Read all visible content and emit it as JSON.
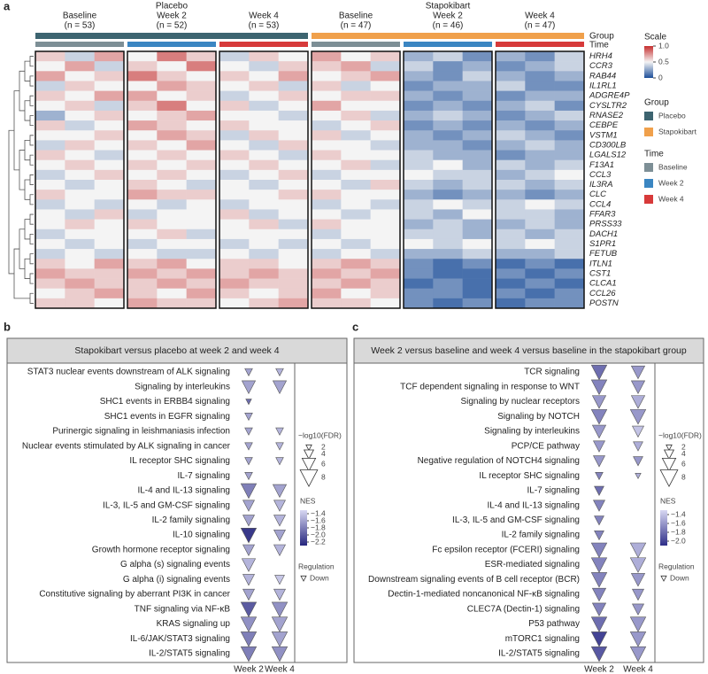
{
  "panel_a": {
    "label": "a",
    "group_names": [
      "Placebo",
      "Stapokibart"
    ],
    "time_labels": [
      "Baseline",
      "Week 2",
      "Week 4",
      "Baseline",
      "Week 2",
      "Week 4"
    ],
    "n_labels": [
      "(n = 53)",
      "(n = 52)",
      "(n = 53)",
      "(n = 47)",
      "(n = 46)",
      "(n = 47)"
    ],
    "group_bar_label": "Group",
    "time_bar_label": "Time",
    "genes": [
      "HRH4",
      "CCR3",
      "RAB44",
      "IL1RL1",
      "ADGRE4P",
      "CYSLTR2",
      "RNASE2",
      "CEBPE",
      "VSTM1",
      "CD300LB",
      "LGALS12",
      "F13A1",
      "CCL3",
      "IL3RA",
      "CLC",
      "CCL4",
      "FFAR3",
      "PRSS33",
      "DACH1",
      "S1PR1",
      "FETUB",
      "ITLN1",
      "CST1",
      "CLCA1",
      "CCL26",
      "POSTN"
    ],
    "values": [
      [
        0.6,
        0.4,
        0.7,
        0.5,
        0.8,
        0.6,
        0.4,
        0.6,
        0.5,
        0.7,
        0.5,
        0.6,
        0.3,
        0.4,
        0.2,
        0.3,
        0.2,
        0.4
      ],
      [
        0.5,
        0.7,
        0.4,
        0.6,
        0.5,
        0.8,
        0.5,
        0.4,
        0.6,
        0.6,
        0.7,
        0.4,
        0.4,
        0.2,
        0.3,
        0.2,
        0.3,
        0.4
      ],
      [
        0.7,
        0.5,
        0.6,
        0.8,
        0.6,
        0.5,
        0.6,
        0.5,
        0.7,
        0.5,
        0.6,
        0.7,
        0.3,
        0.2,
        0.4,
        0.3,
        0.2,
        0.3
      ],
      [
        0.4,
        0.6,
        0.5,
        0.5,
        0.7,
        0.6,
        0.5,
        0.6,
        0.4,
        0.6,
        0.4,
        0.5,
        0.2,
        0.3,
        0.3,
        0.4,
        0.2,
        0.2
      ],
      [
        0.6,
        0.5,
        0.7,
        0.7,
        0.5,
        0.6,
        0.4,
        0.5,
        0.6,
        0.5,
        0.6,
        0.6,
        0.3,
        0.2,
        0.3,
        0.2,
        0.3,
        0.3
      ],
      [
        0.5,
        0.6,
        0.4,
        0.6,
        0.8,
        0.5,
        0.6,
        0.4,
        0.5,
        0.7,
        0.5,
        0.5,
        0.2,
        0.3,
        0.2,
        0.3,
        0.4,
        0.2
      ],
      [
        0.3,
        0.5,
        0.6,
        0.5,
        0.6,
        0.7,
        0.5,
        0.5,
        0.4,
        0.5,
        0.6,
        0.4,
        0.3,
        0.4,
        0.3,
        0.2,
        0.3,
        0.4
      ],
      [
        0.6,
        0.4,
        0.5,
        0.7,
        0.6,
        0.5,
        0.6,
        0.5,
        0.5,
        0.4,
        0.5,
        0.6,
        0.2,
        0.3,
        0.2,
        0.3,
        0.2,
        0.3
      ],
      [
        0.5,
        0.5,
        0.6,
        0.5,
        0.7,
        0.6,
        0.4,
        0.6,
        0.5,
        0.6,
        0.4,
        0.5,
        0.3,
        0.2,
        0.3,
        0.4,
        0.3,
        0.2
      ],
      [
        0.4,
        0.6,
        0.5,
        0.6,
        0.5,
        0.7,
        0.5,
        0.4,
        0.6,
        0.5,
        0.5,
        0.4,
        0.3,
        0.3,
        0.2,
        0.3,
        0.4,
        0.3
      ],
      [
        0.6,
        0.5,
        0.4,
        0.5,
        0.6,
        0.5,
        0.6,
        0.5,
        0.4,
        0.6,
        0.5,
        0.5,
        0.4,
        0.3,
        0.3,
        0.2,
        0.3,
        0.3
      ],
      [
        0.5,
        0.6,
        0.5,
        0.6,
        0.5,
        0.6,
        0.5,
        0.6,
        0.5,
        0.5,
        0.6,
        0.4,
        0.4,
        0.5,
        0.3,
        0.4,
        0.3,
        0.4
      ],
      [
        0.4,
        0.5,
        0.6,
        0.5,
        0.6,
        0.5,
        0.4,
        0.5,
        0.6,
        0.4,
        0.5,
        0.5,
        0.5,
        0.4,
        0.4,
        0.3,
        0.4,
        0.5
      ],
      [
        0.5,
        0.4,
        0.5,
        0.6,
        0.5,
        0.4,
        0.5,
        0.4,
        0.5,
        0.5,
        0.4,
        0.6,
        0.4,
        0.3,
        0.4,
        0.4,
        0.3,
        0.4
      ],
      [
        0.6,
        0.5,
        0.5,
        0.7,
        0.6,
        0.6,
        0.5,
        0.5,
        0.6,
        0.6,
        0.5,
        0.5,
        0.3,
        0.2,
        0.3,
        0.3,
        0.2,
        0.3
      ],
      [
        0.4,
        0.5,
        0.4,
        0.5,
        0.4,
        0.5,
        0.4,
        0.5,
        0.5,
        0.4,
        0.5,
        0.4,
        0.4,
        0.5,
        0.4,
        0.4,
        0.5,
        0.4
      ],
      [
        0.5,
        0.4,
        0.6,
        0.4,
        0.5,
        0.5,
        0.6,
        0.4,
        0.5,
        0.5,
        0.4,
        0.5,
        0.4,
        0.3,
        0.5,
        0.4,
        0.4,
        0.3
      ],
      [
        0.5,
        0.6,
        0.5,
        0.6,
        0.5,
        0.5,
        0.5,
        0.6,
        0.4,
        0.6,
        0.5,
        0.5,
        0.3,
        0.4,
        0.3,
        0.3,
        0.4,
        0.3
      ],
      [
        0.4,
        0.5,
        0.5,
        0.5,
        0.6,
        0.4,
        0.5,
        0.5,
        0.5,
        0.4,
        0.5,
        0.5,
        0.4,
        0.4,
        0.3,
        0.4,
        0.3,
        0.4
      ],
      [
        0.5,
        0.4,
        0.5,
        0.4,
        0.5,
        0.5,
        0.4,
        0.5,
        0.4,
        0.5,
        0.4,
        0.5,
        0.5,
        0.4,
        0.5,
        0.4,
        0.5,
        0.4
      ],
      [
        0.4,
        0.5,
        0.4,
        0.5,
        0.4,
        0.4,
        0.5,
        0.4,
        0.5,
        0.4,
        0.5,
        0.4,
        0.3,
        0.3,
        0.4,
        0.3,
        0.3,
        0.4
      ],
      [
        0.6,
        0.5,
        0.7,
        0.6,
        0.7,
        0.5,
        0.6,
        0.6,
        0.5,
        0.6,
        0.7,
        0.6,
        0.2,
        0.1,
        0.2,
        0.1,
        0.2,
        0.1
      ],
      [
        0.7,
        0.6,
        0.6,
        0.7,
        0.6,
        0.7,
        0.6,
        0.7,
        0.6,
        0.7,
        0.6,
        0.7,
        0.2,
        0.1,
        0.1,
        0.2,
        0.1,
        0.2
      ],
      [
        0.6,
        0.7,
        0.6,
        0.6,
        0.7,
        0.6,
        0.7,
        0.6,
        0.6,
        0.6,
        0.7,
        0.6,
        0.1,
        0.2,
        0.1,
        0.1,
        0.2,
        0.1
      ],
      [
        0.5,
        0.6,
        0.7,
        0.6,
        0.5,
        0.7,
        0.6,
        0.5,
        0.6,
        0.7,
        0.5,
        0.6,
        0.2,
        0.2,
        0.1,
        0.2,
        0.1,
        0.2
      ],
      [
        0.6,
        0.6,
        0.5,
        0.7,
        0.6,
        0.6,
        0.5,
        0.6,
        0.7,
        0.6,
        0.6,
        0.5,
        0.2,
        0.1,
        0.2,
        0.1,
        0.2,
        0.2
      ]
    ],
    "scale": {
      "title": "Scale",
      "lim": [
        0,
        1
      ],
      "colors": [
        "#1d4f9a",
        "#f4f4f4",
        "#c62f2f"
      ],
      "ticks": [
        {
          "value": 1,
          "label": "1.0"
        },
        0.5,
        0
      ]
    },
    "legend": {
      "group_title": "Group",
      "groups": [
        {
          "name": "Placebo",
          "color": "#3d6470"
        },
        {
          "name": "Stapokibart",
          "color": "#f0a04b"
        }
      ],
      "time_title": "Time",
      "times": [
        {
          "name": "Baseline",
          "color": "#7d8f96"
        },
        {
          "name": "Week 2",
          "color": "#3b86c2"
        },
        {
          "name": "Week 4",
          "color": "#d73a3a"
        }
      ]
    }
  },
  "panel_b": {
    "label": "b",
    "title": "Stapokibart versus placebo at week 2 and week 4",
    "pathways": [
      "STAT3 nuclear events downstream of ALK signaling",
      "Signaling by interleukins",
      "SHC1 events in ERBB4 signaling",
      "SHC1 events in EGFR signaling",
      "Purinergic signaling in leishmaniasis infection",
      "Nuclear events stimulated by ALK signaling in cancer",
      "IL receptor SHC signaling",
      "IL-7 signaling",
      "IL-4 and IL-13 signaling",
      "IL-3, IL-5 and GM-CSF signaling",
      "IL-2 family signaling",
      "IL-10 signaling",
      "Growth hormone receptor signaling",
      "G alpha (s) signaling events",
      "G alpha (i) signaling events",
      "Constitutive signaling by aberrant PI3K in cancer",
      "TNF signaling via NF-κB",
      "KRAS signaling up",
      "IL-6/JAK/STAT3 signaling",
      "IL-2/STAT5 signaling"
    ],
    "series": [
      {
        "name": "Week 2",
        "nes": [
          -1.6,
          -1.6,
          -1.9,
          -1.6,
          -1.6,
          -1.6,
          -1.6,
          -1.6,
          -1.8,
          -1.6,
          -1.6,
          -2.2,
          -1.6,
          -1.5,
          -1.5,
          -1.6,
          -2.0,
          -1.7,
          -1.8,
          -1.8
        ],
        "log_fdr": [
          3,
          6,
          2,
          3,
          3,
          3,
          3,
          3,
          7,
          5,
          5,
          7,
          5,
          6,
          5,
          5,
          7,
          7,
          7,
          7
        ]
      },
      {
        "name": "Week 4",
        "nes": [
          -1.5,
          -1.6,
          null,
          null,
          -1.5,
          -1.5,
          -1.5,
          null,
          -1.6,
          -1.5,
          -1.5,
          -1.6,
          -1.5,
          null,
          -1.4,
          -1.5,
          -1.7,
          -1.6,
          -1.6,
          -1.7
        ],
        "log_fdr": [
          3,
          6,
          null,
          null,
          3,
          3,
          3,
          null,
          6,
          5,
          5,
          5,
          5,
          null,
          4,
          5,
          7,
          7,
          7,
          7
        ]
      }
    ],
    "size_title": "−log10(FDR)",
    "size_ticks": [
      2,
      4,
      6,
      8
    ],
    "nes_title": "NES",
    "nes_lim": [
      -1.3,
      -2.3
    ],
    "nes_colors": [
      "#d8d8f2",
      "#26267e"
    ],
    "nes_ticks": [
      {
        "value": -1.4,
        "label": "−1.4"
      },
      {
        "value": -1.6,
        "label": "−1.6"
      },
      {
        "value": -1.8,
        "label": "−1.8"
      },
      {
        "value": -2.0,
        "label": "−2.0"
      },
      {
        "value": -2.2,
        "label": "−2.2"
      }
    ],
    "regulation_title": "Regulation",
    "regulation": "Down"
  },
  "panel_c": {
    "label": "c",
    "title": "Week 2 versus baseline and week 4 versus baseline in the stapokibart group",
    "pathways": [
      "TCR signaling",
      "TCF dependent signaling in response to WNT",
      "Signaling by nuclear receptors",
      "Signaling by NOTCH",
      "Signaling by interleukins",
      "PCP/CE pathway",
      "Negative regulation of NOTCH4 signaling",
      "IL receptor SHC signaling",
      "IL-7 signaling",
      "IL-4 and IL-13 signaling",
      "IL-3, IL-5 and GM-CSF signaling",
      "IL-2 family signaling",
      "Fc epsilon receptor (FCERI) signaling",
      "ESR-mediated signaling",
      "Downstream signaling events of B cell receptor (BCR)",
      "Dectin-1-mediated noncanonical NF-κB signaling",
      "CLEC7A (Dectin-1) signaling",
      "P53 pathway",
      "mTORC1 signaling",
      "IL-2/STAT5 signaling"
    ],
    "series": [
      {
        "name": "Week 2",
        "nes": [
          -1.8,
          -1.7,
          -1.6,
          -1.7,
          -1.6,
          -1.6,
          -1.6,
          -1.7,
          -1.8,
          -1.7,
          -1.7,
          -1.7,
          -1.7,
          -1.7,
          -1.7,
          -1.7,
          -1.7,
          -1.8,
          -2.0,
          -1.9
        ],
        "log_fdr": [
          7,
          7,
          6,
          7,
          6,
          5,
          5,
          3,
          4,
          5,
          4,
          4,
          7,
          7,
          7,
          6,
          6,
          7,
          7,
          7
        ]
      },
      {
        "name": "Week 4",
        "nes": [
          -1.6,
          -1.6,
          -1.5,
          -1.6,
          -1.4,
          -1.5,
          -1.6,
          -1.5,
          null,
          null,
          null,
          null,
          -1.5,
          -1.5,
          -1.6,
          -1.6,
          -1.6,
          -1.6,
          -1.6,
          -1.6
        ],
        "log_fdr": [
          6,
          6,
          6,
          7,
          5,
          4,
          4,
          2,
          null,
          null,
          null,
          null,
          7,
          7,
          6,
          5,
          5,
          7,
          7,
          7
        ]
      }
    ],
    "size_title": "−log10(FDR)",
    "size_ticks": [
      2,
      4,
      6,
      8
    ],
    "nes_title": "NES",
    "nes_lim": [
      -1.3,
      -2.1
    ],
    "nes_colors": [
      "#d8d8f2",
      "#2e2e88"
    ],
    "nes_ticks": [
      {
        "value": -1.4,
        "label": "−1.4"
      },
      {
        "value": -1.6,
        "label": "−1.6"
      },
      {
        "value": -1.8,
        "label": "−1.8"
      },
      {
        "value": -2.0,
        "label": "−2.0"
      }
    ],
    "regulation_title": "Regulation",
    "regulation": "Down"
  }
}
